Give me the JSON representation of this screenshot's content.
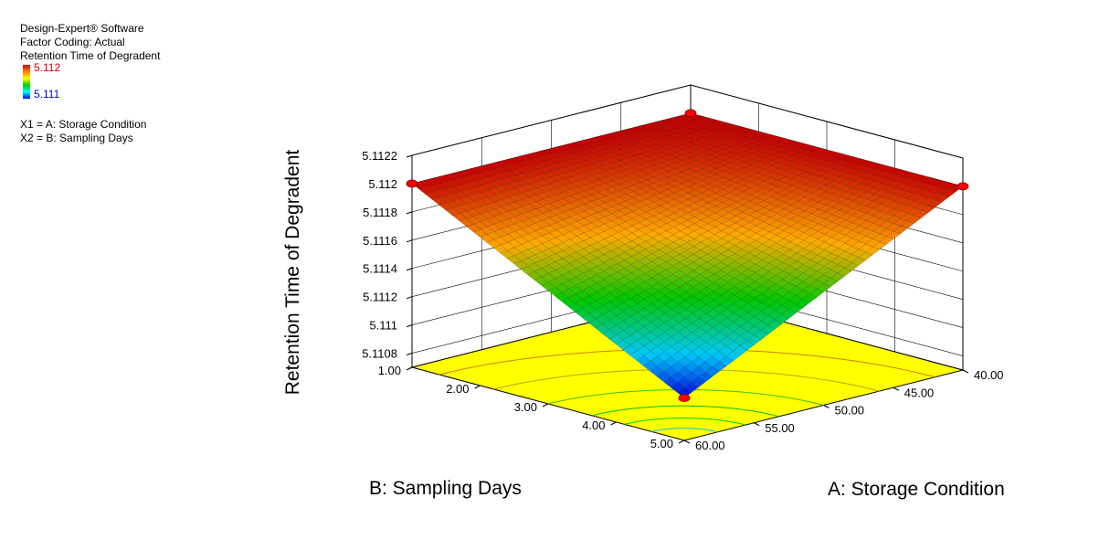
{
  "legend": {
    "software": "Design-Expert® Software",
    "coding": "Factor Coding: Actual",
    "response": "Retention Time of Degradent",
    "color_max": "5.112",
    "color_min": "5.111",
    "color_max_hex": "#cc0000",
    "color_min_hex": "#0000cc",
    "x1": "X1 = A: Storage Condition",
    "x2": "X2 = B: Sampling Days"
  },
  "chart_data": {
    "type": "surface3d",
    "title": "",
    "zlabel": "Retention Time of Degradent",
    "xlabel": "A: Storage Condition",
    "ylabel": "B: Sampling Days",
    "x_ticks": [
      "40.00",
      "45.00",
      "50.00",
      "55.00",
      "60.00"
    ],
    "y_ticks": [
      "1.00",
      "2.00",
      "3.00",
      "4.00",
      "5.00"
    ],
    "z_ticks": [
      "5.1108",
      "5.111",
      "5.1112",
      "5.1114",
      "5.1116",
      "5.1118",
      "5.112",
      "5.1122"
    ],
    "xlim": [
      40,
      60
    ],
    "ylim": [
      1,
      5
    ],
    "zlim": [
      5.1107,
      5.1122
    ],
    "design_points": [
      {
        "A": 40,
        "B": 1,
        "z": 5.112
      },
      {
        "A": 60,
        "B": 1,
        "z": 5.112
      },
      {
        "A": 40,
        "B": 5,
        "z": 5.112
      },
      {
        "A": 60,
        "B": 5,
        "z": 5.111
      }
    ],
    "floor_color": "#ffff00",
    "point_color": "#ff0000"
  }
}
